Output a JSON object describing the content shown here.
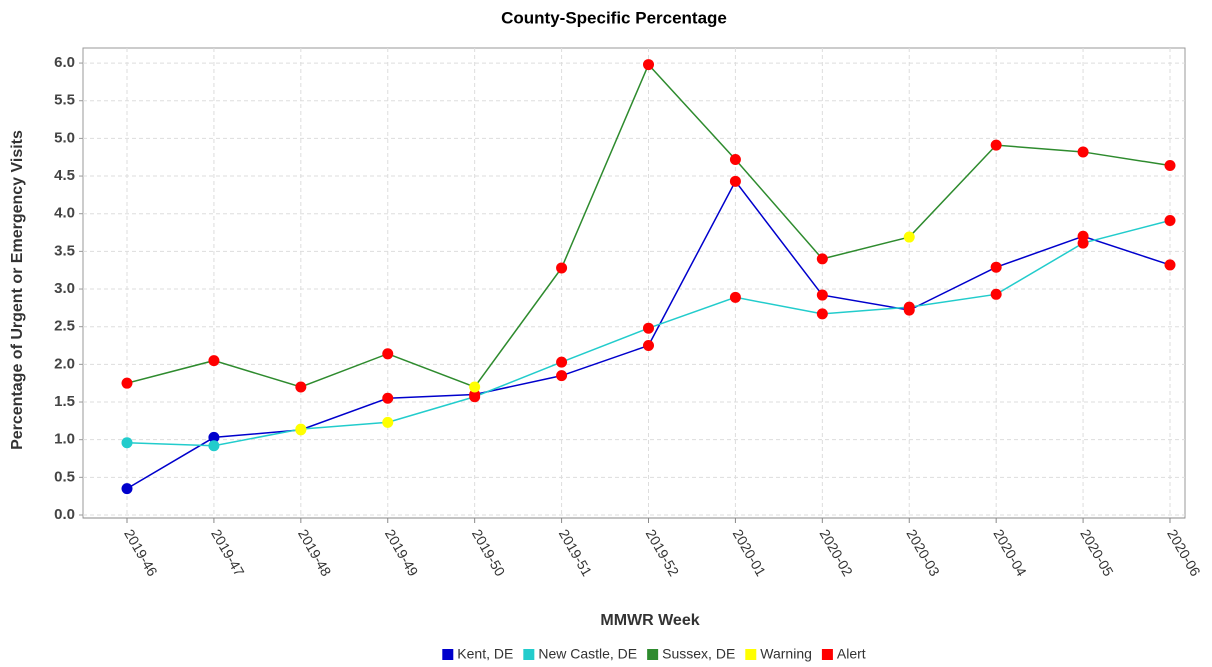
{
  "chart_data": {
    "type": "line",
    "title": "County-Specific Percentage",
    "x_label": "MMWR Week",
    "y_label": "Percentage of Urgent or Emergency Visits",
    "categories": [
      "2019-46",
      "2019-47",
      "2019-48",
      "2019-49",
      "2019-50",
      "2019-51",
      "2019-52",
      "2020-01",
      "2020-02",
      "2020-03",
      "2020-04",
      "2020-05",
      "2020-06"
    ],
    "series": [
      {
        "name": "Kent, DE",
        "color": "#0000cc",
        "values": [
          0.35,
          1.03,
          1.13,
          1.55,
          1.6,
          1.85,
          2.25,
          4.43,
          2.92,
          2.72,
          3.29,
          3.7,
          3.32
        ],
        "marker_colors": [
          "#0000cc",
          "#0000cc",
          "#ffff00",
          "#ff0000",
          "#ff0000",
          "#ff0000",
          "#ff0000",
          "#ff0000",
          "#ff0000",
          "#ff0000",
          "#ff0000",
          "#ff0000",
          "#ff0000"
        ]
      },
      {
        "name": "New Castle, DE",
        "color": "#22cccc",
        "values": [
          0.96,
          0.92,
          1.14,
          1.23,
          1.57,
          2.03,
          2.48,
          2.89,
          2.67,
          2.76,
          2.93,
          3.61,
          3.91
        ],
        "marker_colors": [
          "#22cccc",
          "#22cccc",
          "#ffff00",
          "#ffff00",
          "#ff0000",
          "#ff0000",
          "#ff0000",
          "#ff0000",
          "#ff0000",
          "#ff0000",
          "#ff0000",
          "#ff0000",
          "#ff0000"
        ]
      },
      {
        "name": "Sussex, DE",
        "color": "#2e8b2e",
        "values": [
          1.75,
          2.05,
          1.7,
          2.14,
          1.7,
          3.28,
          5.98,
          4.72,
          3.4,
          3.69,
          4.91,
          4.82,
          4.64
        ],
        "marker_colors": [
          "#ff0000",
          "#ff0000",
          "#ff0000",
          "#ff0000",
          "#ffff00",
          "#ff0000",
          "#ff0000",
          "#ff0000",
          "#ff0000",
          "#ffff00",
          "#ff0000",
          "#ff0000",
          "#ff0000"
        ]
      }
    ],
    "legend_extra": [
      {
        "name": "Warning",
        "color": "#ffff00"
      },
      {
        "name": "Alert",
        "color": "#ff0000"
      }
    ],
    "ylim": [
      0,
      6.2
    ],
    "yticks": [
      {
        "value": 0,
        "label": "0.0"
      },
      0.5,
      {
        "value": 1,
        "label": "1.0"
      },
      1.5,
      {
        "value": 2,
        "label": "2.0"
      },
      2.5,
      {
        "value": 3,
        "label": "3.0"
      },
      3.5,
      {
        "value": 4,
        "label": "4.0"
      },
      4.5,
      {
        "value": 5,
        "label": "5.0"
      },
      5.5,
      {
        "value": 6,
        "label": "6.0"
      }
    ],
    "grid": true
  }
}
